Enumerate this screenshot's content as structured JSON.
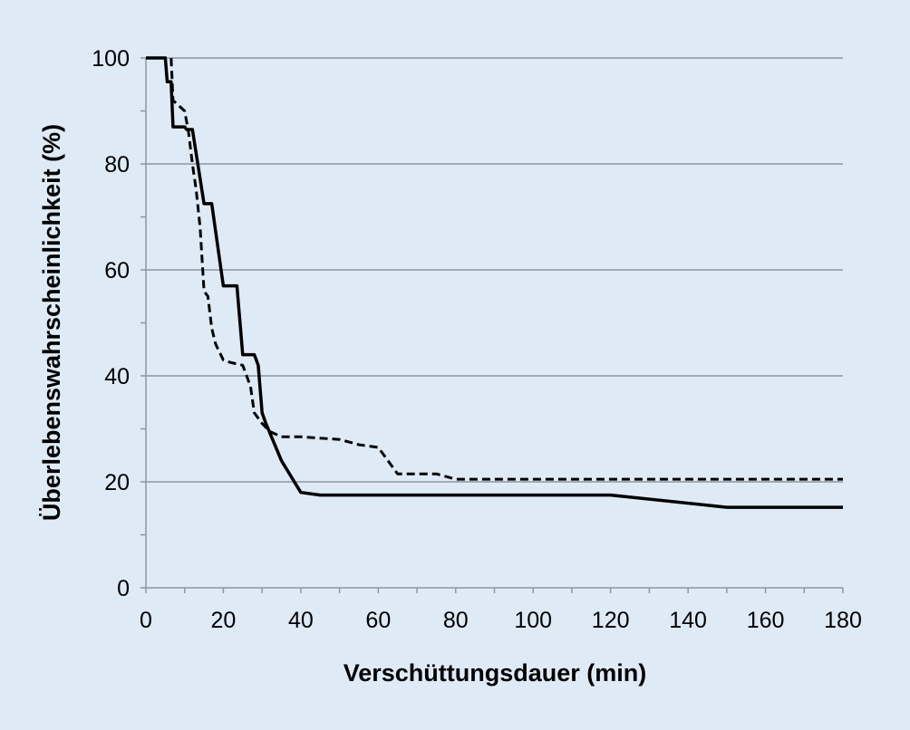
{
  "chart_data": {
    "type": "line",
    "title": "",
    "xlabel": "Verschüttungsdauer (min)",
    "ylabel": "Überlebenswahrscheinlichkeit (%)",
    "xlim": [
      0,
      180
    ],
    "ylim": [
      0,
      100
    ],
    "xticks": [
      0,
      20,
      40,
      60,
      80,
      100,
      120,
      140,
      160,
      180
    ],
    "yticks": [
      0,
      20,
      40,
      60,
      80,
      100
    ],
    "grid": "horizontal",
    "colors": {
      "background": "#deebf7",
      "gridline": "#8c969e",
      "line": "#000000"
    },
    "series": [
      {
        "style": "solid",
        "points": [
          [
            0,
            100
          ],
          [
            5,
            100
          ],
          [
            5.5,
            95.5
          ],
          [
            6.5,
            95.5
          ],
          [
            7,
            87
          ],
          [
            10,
            87
          ],
          [
            10.5,
            86.5
          ],
          [
            12,
            86.5
          ],
          [
            15,
            72.5
          ],
          [
            17,
            72.5
          ],
          [
            20,
            57
          ],
          [
            22,
            57
          ],
          [
            23.5,
            57
          ],
          [
            25,
            44
          ],
          [
            28,
            44
          ],
          [
            29,
            42
          ],
          [
            30,
            33
          ],
          [
            31,
            31
          ],
          [
            35,
            24
          ],
          [
            40,
            18
          ],
          [
            45,
            17.5
          ],
          [
            120,
            17.5
          ],
          [
            150,
            15.2
          ],
          [
            180,
            15.2
          ]
        ]
      },
      {
        "style": "dashed",
        "points": [
          [
            0,
            100
          ],
          [
            6.5,
            100
          ],
          [
            7,
            92
          ],
          [
            8.5,
            91
          ],
          [
            10,
            90
          ],
          [
            11,
            86
          ],
          [
            12,
            80
          ],
          [
            13,
            75
          ],
          [
            14,
            68
          ],
          [
            15,
            56
          ],
          [
            16,
            55
          ],
          [
            17,
            49
          ],
          [
            18,
            46
          ],
          [
            20,
            43
          ],
          [
            22,
            42.5
          ],
          [
            25,
            42
          ],
          [
            27,
            38
          ],
          [
            28,
            33
          ],
          [
            30,
            31
          ],
          [
            32,
            29.5
          ],
          [
            35,
            28.5
          ],
          [
            40,
            28.5
          ],
          [
            50,
            28
          ],
          [
            55,
            27
          ],
          [
            60,
            26.5
          ],
          [
            65,
            21.5
          ],
          [
            75,
            21.5
          ],
          [
            80,
            20.5
          ],
          [
            180,
            20.5
          ]
        ]
      }
    ]
  }
}
